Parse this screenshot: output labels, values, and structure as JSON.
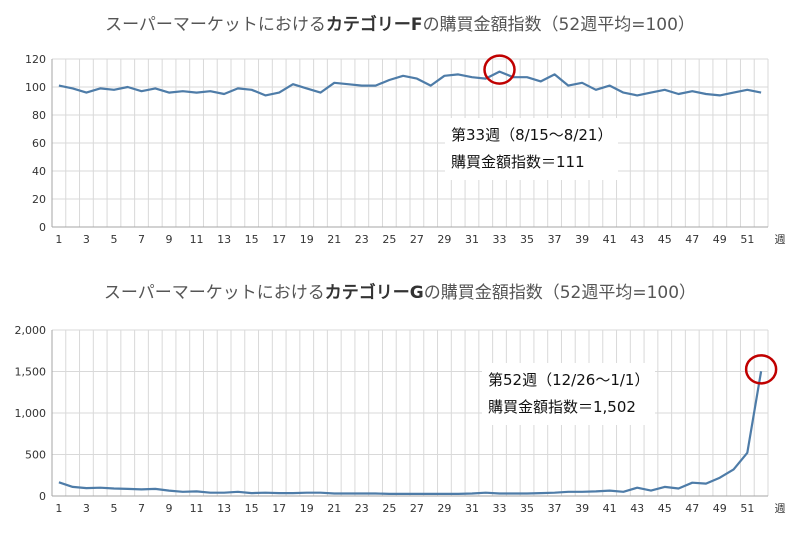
{
  "chart_data": [
    {
      "type": "line",
      "title_prefix": "スーパーマーケットにおける",
      "title_bold": "カテゴリーF",
      "title_suffix": "の購買金額指数（52週平均=100）",
      "x_unit_label": "週",
      "x": [
        1,
        2,
        3,
        4,
        5,
        6,
        7,
        8,
        9,
        10,
        11,
        12,
        13,
        14,
        15,
        16,
        17,
        18,
        19,
        20,
        21,
        22,
        23,
        24,
        25,
        26,
        27,
        28,
        29,
        30,
        31,
        32,
        33,
        34,
        35,
        36,
        37,
        38,
        39,
        40,
        41,
        42,
        43,
        44,
        45,
        46,
        47,
        48,
        49,
        50,
        51,
        52
      ],
      "x_tick_labels": [
        "1",
        "3",
        "5",
        "7",
        "9",
        "11",
        "13",
        "15",
        "17",
        "19",
        "21",
        "23",
        "25",
        "27",
        "29",
        "31",
        "33",
        "35",
        "37",
        "39",
        "41",
        "43",
        "45",
        "47",
        "49",
        "51"
      ],
      "y_tick_labels": [
        "0",
        "20",
        "40",
        "60",
        "80",
        "100",
        "120"
      ],
      "ylim": [
        0,
        120
      ],
      "grid": true,
      "series": [
        {
          "values": [
            101,
            99,
            96,
            99,
            98,
            100,
            97,
            99,
            96,
            97,
            96,
            97,
            95,
            99,
            98,
            94,
            96,
            102,
            99,
            96,
            103,
            102,
            101,
            101,
            105,
            108,
            106,
            101,
            108,
            109,
            107,
            106,
            111,
            107,
            107,
            104,
            109,
            101,
            103,
            98,
            101,
            96,
            94,
            96,
            98,
            95,
            97,
            95,
            94,
            96,
            98,
            96
          ]
        }
      ],
      "highlight_index": 32,
      "annotation": {
        "line1": "第33週（8/15～8/21）",
        "line2": "購買金額指数＝111"
      }
    },
    {
      "type": "line",
      "title_prefix": "スーパーマーケットにおける",
      "title_bold": "カテゴリーG",
      "title_suffix": "の購買金額指数（52週平均=100）",
      "x_unit_label": "週",
      "x": [
        1,
        2,
        3,
        4,
        5,
        6,
        7,
        8,
        9,
        10,
        11,
        12,
        13,
        14,
        15,
        16,
        17,
        18,
        19,
        20,
        21,
        22,
        23,
        24,
        25,
        26,
        27,
        28,
        29,
        30,
        31,
        32,
        33,
        34,
        35,
        36,
        37,
        38,
        39,
        40,
        41,
        42,
        43,
        44,
        45,
        46,
        47,
        48,
        49,
        50,
        51,
        52
      ],
      "x_tick_labels": [
        "1",
        "3",
        "5",
        "7",
        "9",
        "11",
        "13",
        "15",
        "17",
        "19",
        "21",
        "23",
        "25",
        "27",
        "29",
        "31",
        "33",
        "35",
        "37",
        "39",
        "41",
        "43",
        "45",
        "47",
        "49",
        "51"
      ],
      "y_tick_labels": [
        "0",
        "500",
        "1,000",
        "1,500",
        "2,000"
      ],
      "ylim": [
        0,
        2000
      ],
      "grid": true,
      "series": [
        {
          "values": [
            165,
            110,
            95,
            100,
            90,
            85,
            80,
            85,
            65,
            50,
            55,
            40,
            40,
            50,
            35,
            40,
            35,
            35,
            40,
            40,
            30,
            30,
            30,
            30,
            25,
            25,
            25,
            25,
            25,
            25,
            30,
            40,
            30,
            30,
            30,
            35,
            40,
            50,
            50,
            55,
            65,
            50,
            100,
            65,
            110,
            90,
            160,
            150,
            220,
            320,
            520,
            1502
          ]
        }
      ],
      "highlight_index": 51,
      "annotation": {
        "line1": "第52週（12/26～1/1）",
        "line2": "購買金額指数＝1,502"
      }
    }
  ]
}
